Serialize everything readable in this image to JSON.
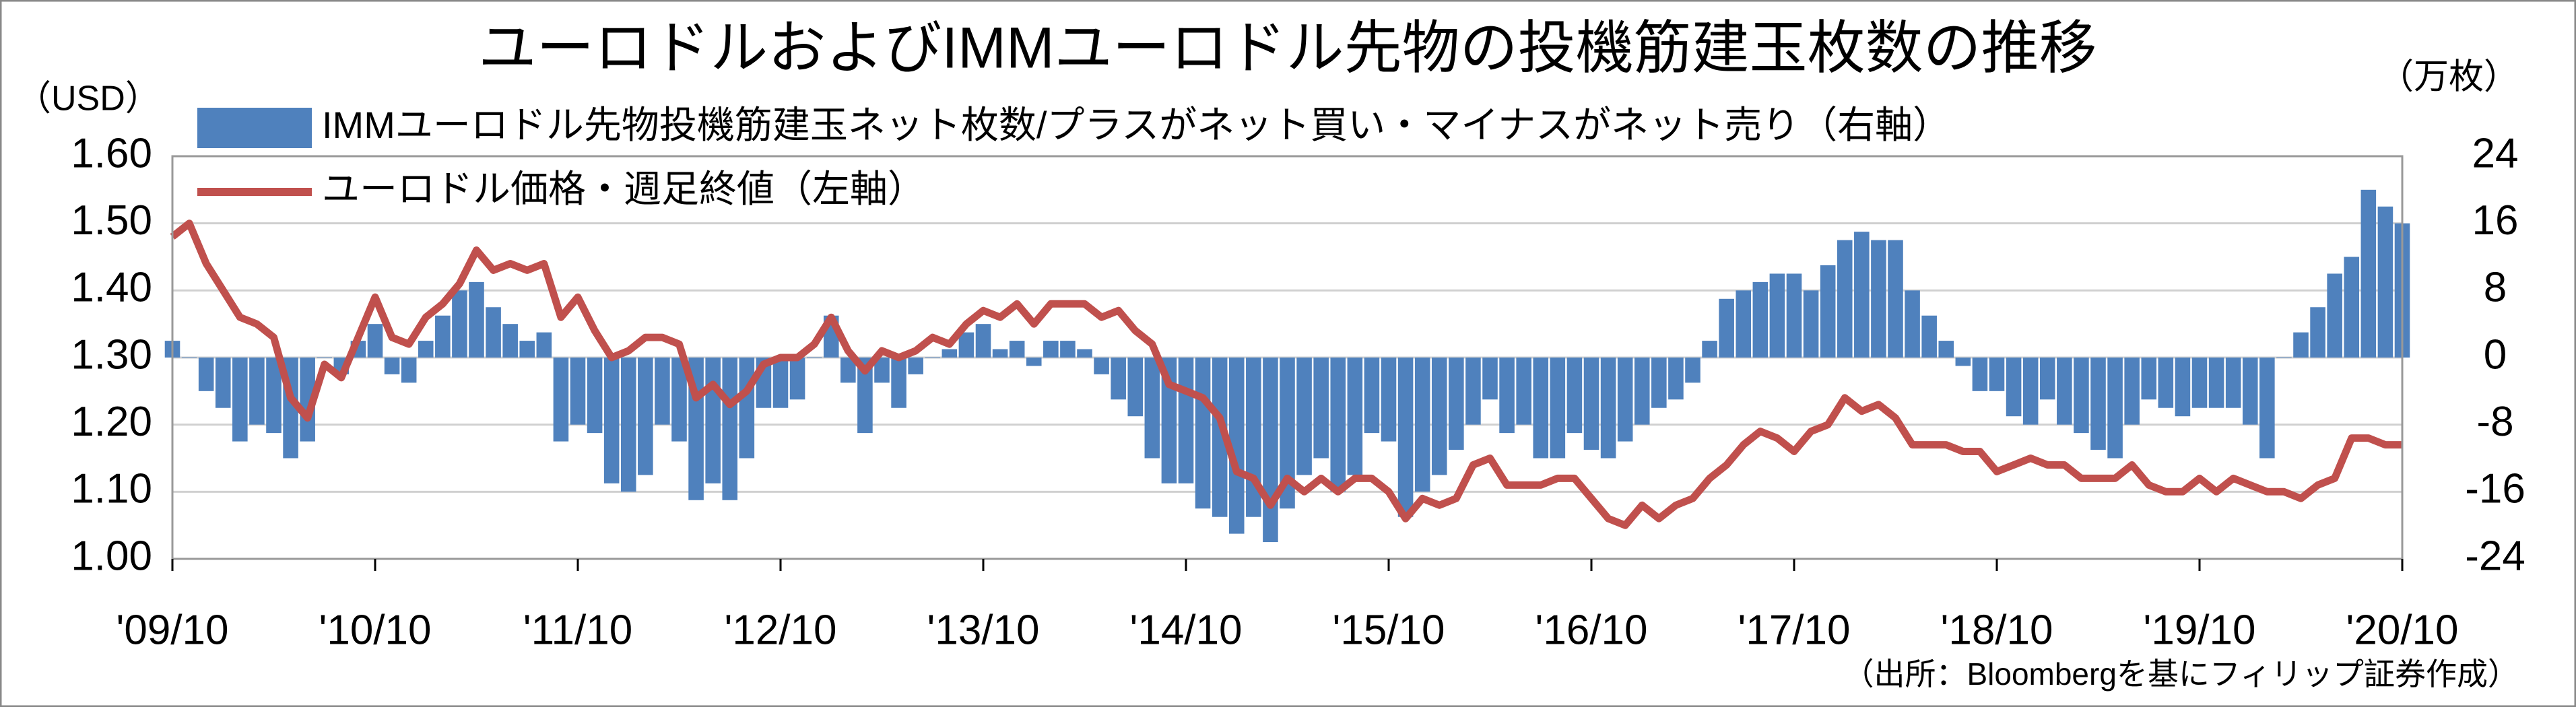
{
  "chart_data": {
    "type": "combo",
    "title": "ユーロドルおよびIMMユーロドル先物の投機筋建玉枚数の推移",
    "y_unit": "（USD）",
    "y2_unit": "（万枚）",
    "source": "（出所：Bloombergを基にフィリップ証券作成）",
    "categories": [
      "'09/10",
      null,
      null,
      null,
      null,
      null,
      null,
      null,
      null,
      null,
      null,
      null,
      "'10/10",
      null,
      null,
      null,
      null,
      null,
      null,
      null,
      null,
      null,
      null,
      null,
      "'11/10",
      null,
      null,
      null,
      null,
      null,
      null,
      null,
      null,
      null,
      null,
      null,
      "'12/10",
      null,
      null,
      null,
      null,
      null,
      null,
      null,
      null,
      null,
      null,
      null,
      "'13/10",
      null,
      null,
      null,
      null,
      null,
      null,
      null,
      null,
      null,
      null,
      null,
      "'14/10",
      null,
      null,
      null,
      null,
      null,
      null,
      null,
      null,
      null,
      null,
      null,
      "'15/10",
      null,
      null,
      null,
      null,
      null,
      null,
      null,
      null,
      null,
      null,
      null,
      "'16/10",
      null,
      null,
      null,
      null,
      null,
      null,
      null,
      null,
      null,
      null,
      null,
      "'17/10",
      null,
      null,
      null,
      null,
      null,
      null,
      null,
      null,
      null,
      null,
      null,
      "'18/10",
      null,
      null,
      null,
      null,
      null,
      null,
      null,
      null,
      null,
      null,
      null,
      "'19/10",
      null,
      null,
      null,
      null,
      null,
      null,
      null,
      null,
      null,
      null,
      null,
      "'20/10"
    ],
    "series": [
      {
        "name": "IMMユーロドル先物投機筋建玉ネット枚数/プラスがネット買い・マイナスがネット売り（右軸）",
        "type": "bar",
        "axis": "y2",
        "color": "#4f81bd",
        "values": [
          2,
          0,
          -4,
          -6,
          -10,
          -8,
          -9,
          -12,
          -10,
          0,
          -2,
          2,
          4,
          -2,
          -3,
          2,
          5,
          8,
          9,
          6,
          4,
          2,
          3,
          -10,
          -8,
          -9,
          -15,
          -16,
          -14,
          -8,
          -10,
          -17,
          -15,
          -17,
          -12,
          -6,
          -6,
          -5,
          0,
          5,
          -3,
          -9,
          -3,
          -6,
          -2,
          0,
          1,
          3,
          4,
          1,
          2,
          -1,
          2,
          2,
          1,
          -2,
          -5,
          -7,
          -12,
          -15,
          -15,
          -18,
          -19,
          -21,
          -19,
          -22,
          -18,
          -14,
          -12,
          -16,
          -14,
          -9,
          -10,
          -19,
          -16,
          -14,
          -11,
          -8,
          -5,
          -9,
          -8,
          -12,
          -12,
          -9,
          -11,
          -12,
          -10,
          -8,
          -6,
          -5,
          -3,
          2,
          7,
          8,
          9,
          10,
          10,
          8,
          11,
          14,
          15,
          14,
          14,
          8,
          5,
          2,
          -1,
          -4,
          -4,
          -7,
          -8,
          -5,
          -8,
          -9,
          -11,
          -12,
          -8,
          -5,
          -6,
          -7,
          -6,
          -6,
          -6,
          -8,
          -12,
          0,
          3,
          6,
          10,
          12,
          20,
          18,
          16
        ]
      },
      {
        "name": "ユーロドル価格・週足終値（左軸）",
        "type": "line",
        "axis": "y",
        "color": "#c0504d",
        "values": [
          1.48,
          1.5,
          1.44,
          1.4,
          1.36,
          1.35,
          1.33,
          1.24,
          1.21,
          1.29,
          1.27,
          1.33,
          1.39,
          1.33,
          1.32,
          1.36,
          1.38,
          1.41,
          1.46,
          1.43,
          1.44,
          1.43,
          1.44,
          1.36,
          1.39,
          1.34,
          1.3,
          1.31,
          1.33,
          1.33,
          1.32,
          1.24,
          1.26,
          1.23,
          1.25,
          1.29,
          1.3,
          1.3,
          1.32,
          1.36,
          1.31,
          1.28,
          1.31,
          1.3,
          1.31,
          1.33,
          1.32,
          1.35,
          1.37,
          1.36,
          1.38,
          1.35,
          1.38,
          1.38,
          1.38,
          1.36,
          1.37,
          1.34,
          1.32,
          1.26,
          1.25,
          1.24,
          1.21,
          1.13,
          1.12,
          1.08,
          1.12,
          1.1,
          1.12,
          1.1,
          1.12,
          1.12,
          1.1,
          1.06,
          1.09,
          1.08,
          1.09,
          1.14,
          1.15,
          1.11,
          1.11,
          1.11,
          1.12,
          1.12,
          1.09,
          1.06,
          1.05,
          1.08,
          1.06,
          1.08,
          1.09,
          1.12,
          1.14,
          1.17,
          1.19,
          1.18,
          1.16,
          1.19,
          1.2,
          1.24,
          1.22,
          1.23,
          1.21,
          1.17,
          1.17,
          1.17,
          1.16,
          1.16,
          1.13,
          1.14,
          1.15,
          1.14,
          1.14,
          1.12,
          1.12,
          1.12,
          1.14,
          1.11,
          1.1,
          1.1,
          1.12,
          1.1,
          1.12,
          1.11,
          1.1,
          1.1,
          1.09,
          1.11,
          1.12,
          1.18,
          1.18,
          1.17,
          1.17
        ]
      }
    ],
    "ylim": [
      1.0,
      1.6
    ],
    "yticks": [
      {
        "value": 1.0,
        "label": "1.00"
      },
      {
        "value": 1.1,
        "label": "1.10"
      },
      {
        "value": 1.2,
        "label": "1.20"
      },
      {
        "value": 1.3,
        "label": "1.30"
      },
      {
        "value": 1.4,
        "label": "1.40"
      },
      {
        "value": 1.5,
        "label": "1.50"
      },
      {
        "value": 1.6,
        "label": "1.60"
      }
    ],
    "y2lim": [
      -24,
      24
    ],
    "y2ticks": [
      -24,
      -16,
      -8,
      0,
      8,
      16,
      24
    ],
    "y2_negative_tick_color": "#ff0000",
    "grid": true
  }
}
